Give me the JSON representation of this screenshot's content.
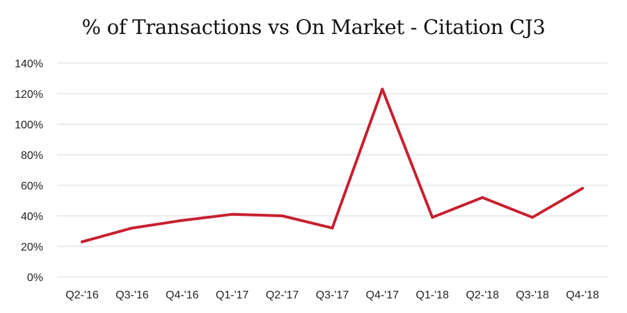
{
  "chart_data": {
    "type": "line",
    "title": "% of Transactions vs On Market - Citation CJ3",
    "xlabel": "",
    "ylabel": "",
    "categories": [
      "Q2-'16",
      "Q3-'16",
      "Q4-'16",
      "Q1-'17",
      "Q2-'17",
      "Q3-'17",
      "Q4-'17",
      "Q1-'18",
      "Q2-'18",
      "Q3-'18",
      "Q4-'18"
    ],
    "series": [
      {
        "values": [
          23,
          32,
          37,
          41,
          40,
          32,
          123,
          39,
          52,
          39,
          58
        ]
      }
    ],
    "ylim": [
      0,
      140
    ],
    "yticks": [
      0,
      20,
      40,
      60,
      80,
      100,
      120,
      140
    ],
    "ytick_labels": [
      "0%",
      "20%",
      "40%",
      "60%",
      "80%",
      "100%",
      "120%",
      "140%"
    ],
    "grid": true,
    "legend": "none",
    "line_color": "#C8202F",
    "grid_color": "#D9D9D9"
  }
}
